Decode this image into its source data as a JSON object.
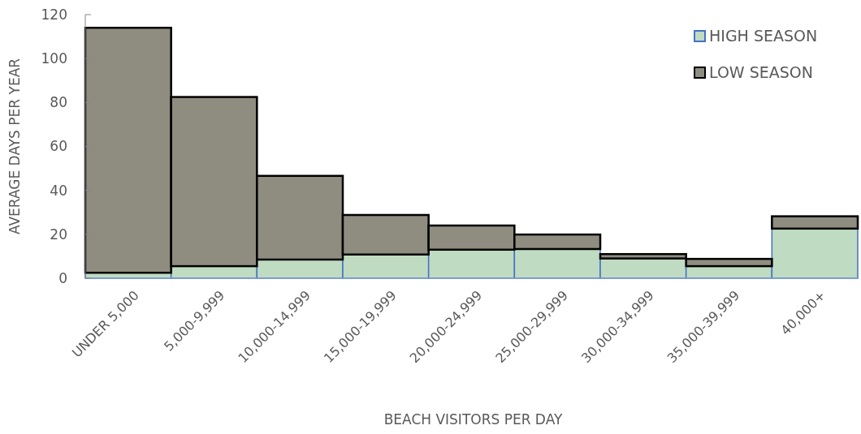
{
  "chart_data": {
    "type": "bar",
    "stacked": true,
    "xlabel": "BEACH VISITORS PER DAY",
    "ylabel": "AVERAGE DAYS PER YEAR",
    "categories": [
      "UNDER 5,000",
      "5,000-9,999",
      "10,000-14,999",
      "15,000-19,999",
      "20,000-24,999",
      "25,000-29,999",
      "30,000-34,999",
      "35,000-39,999",
      "40,000+"
    ],
    "series": [
      {
        "name": "HIGH SEASON",
        "color": "#bfdbc1",
        "values": [
          2.5,
          5.5,
          8.5,
          10.8,
          13,
          13.3,
          9,
          5.5,
          22.6
        ]
      },
      {
        "name": "LOW SEASON",
        "color": "#8f8d80",
        "values": [
          111.5,
          77,
          38.1,
          18,
          11,
          6.6,
          2,
          3.3,
          5.6
        ]
      }
    ],
    "ylim": [
      0,
      120
    ],
    "yticks": [
      0,
      20,
      40,
      60,
      80,
      100,
      120
    ],
    "grid": false,
    "legend": "top right"
  }
}
